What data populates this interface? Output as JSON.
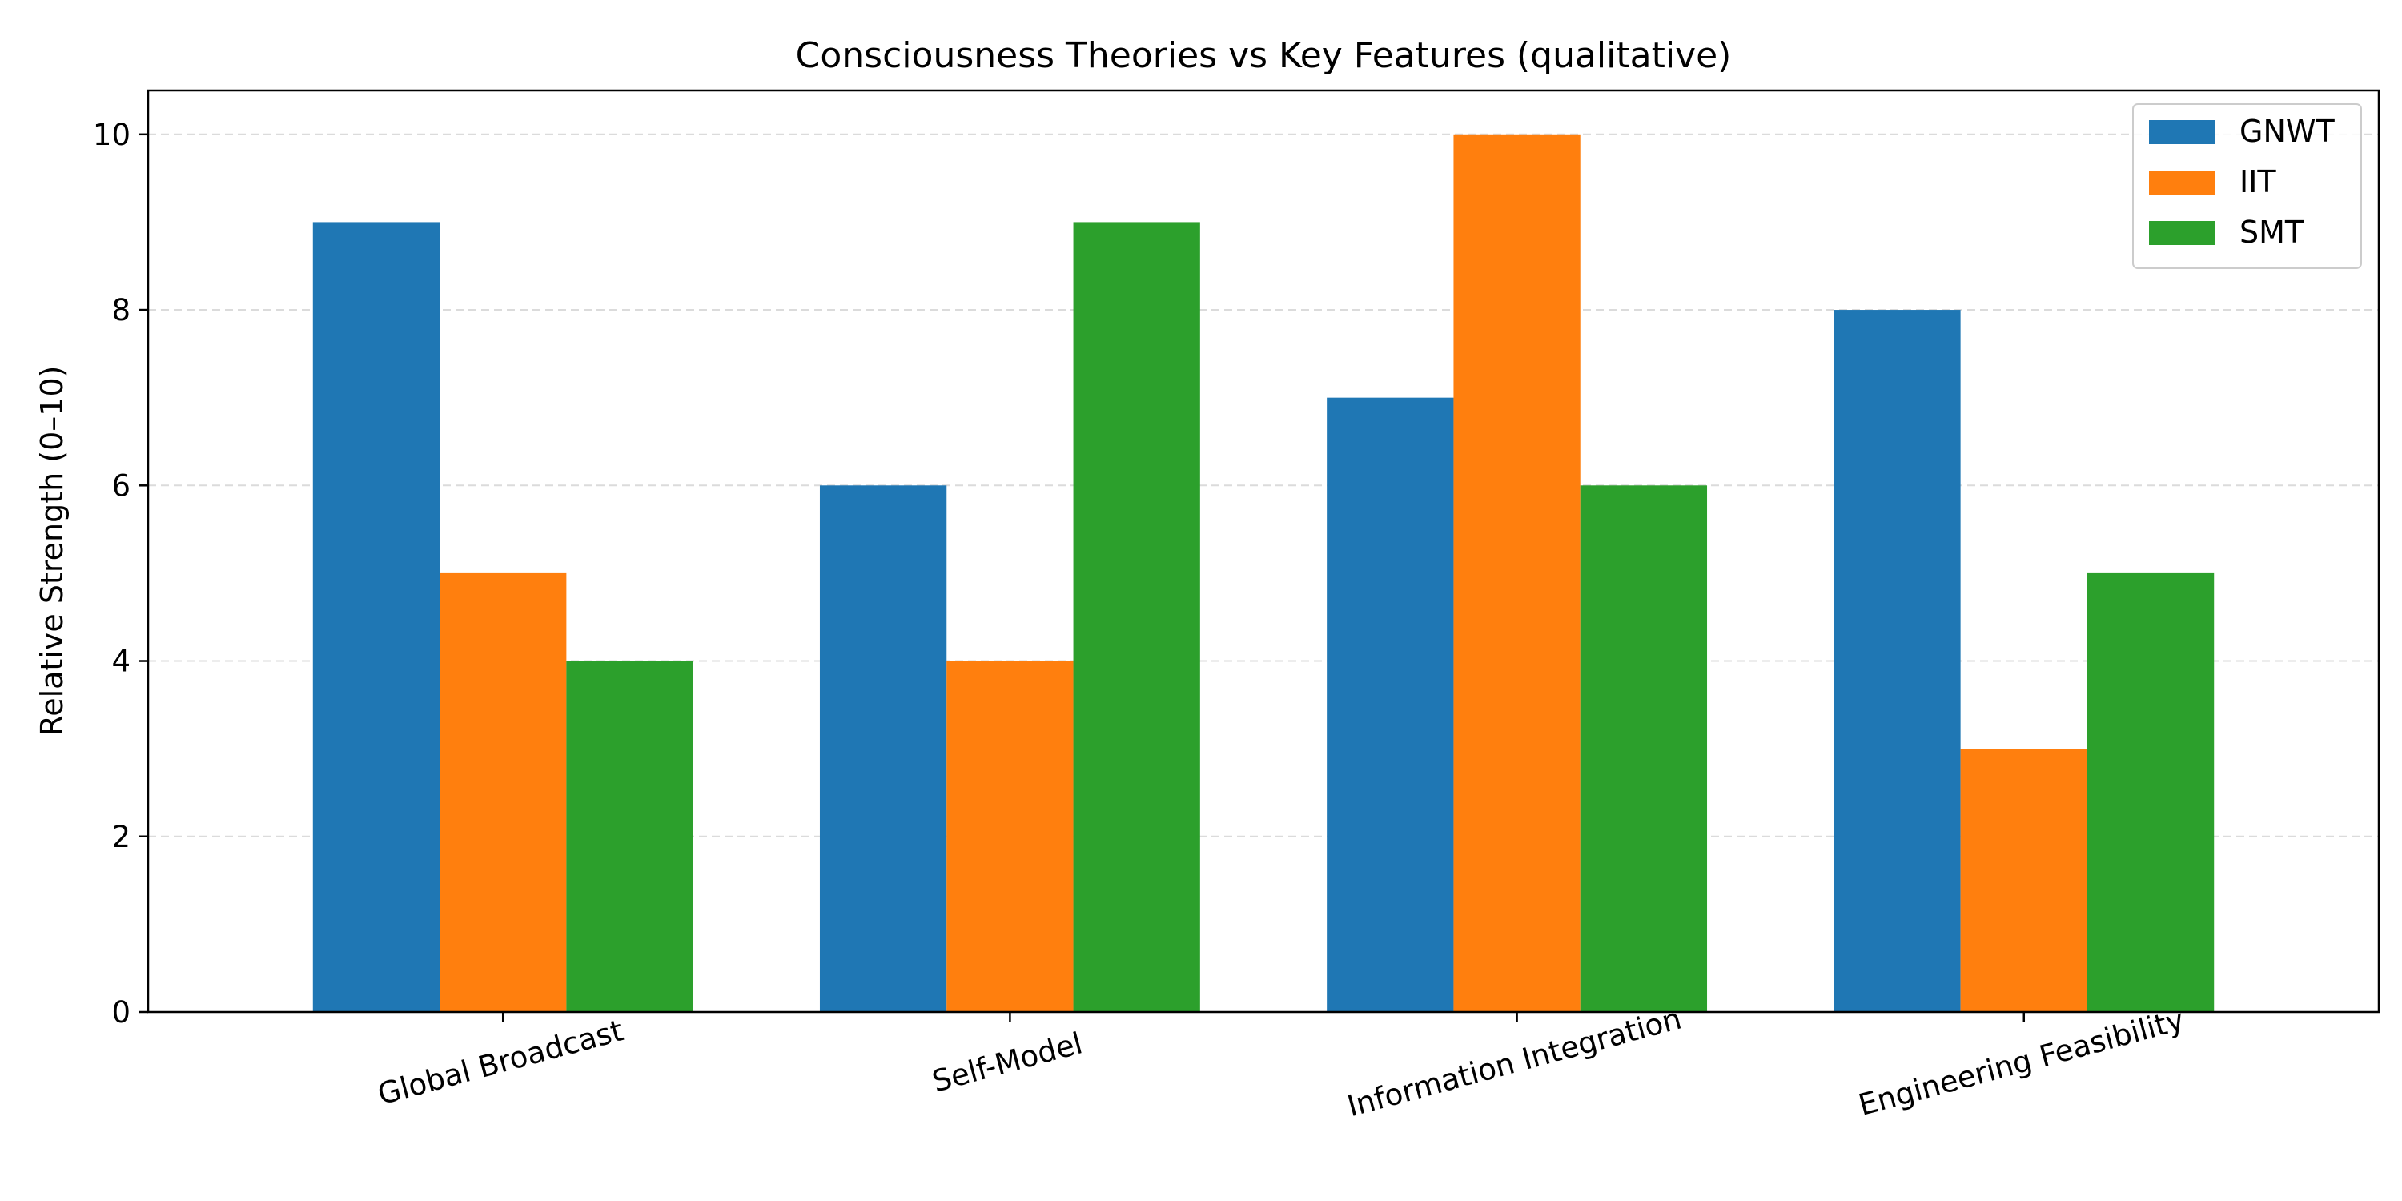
{
  "chart_data": {
    "type": "bar",
    "title": "Consciousness Theories vs Key Features (qualitative)",
    "xlabel": "",
    "ylabel": "Relative Strength (0–10)",
    "categories": [
      "Global Broadcast",
      "Self-Model",
      "Information Integration",
      "Engineering Feasibility"
    ],
    "series": [
      {
        "name": "GNWT",
        "color": "#1f77b4",
        "values": [
          9,
          6,
          7,
          8
        ]
      },
      {
        "name": "IIT",
        "color": "#ff7f0e",
        "values": [
          5,
          4,
          10,
          3
        ]
      },
      {
        "name": "SMT",
        "color": "#2ca02c",
        "values": [
          4,
          9,
          6,
          5
        ]
      }
    ],
    "ylim": [
      0,
      10.5
    ],
    "yticks": [
      0,
      2,
      4,
      6,
      8,
      10
    ],
    "grid": "y-dashed",
    "legend_position": "top-right",
    "x_tick_rotation": 15
  }
}
